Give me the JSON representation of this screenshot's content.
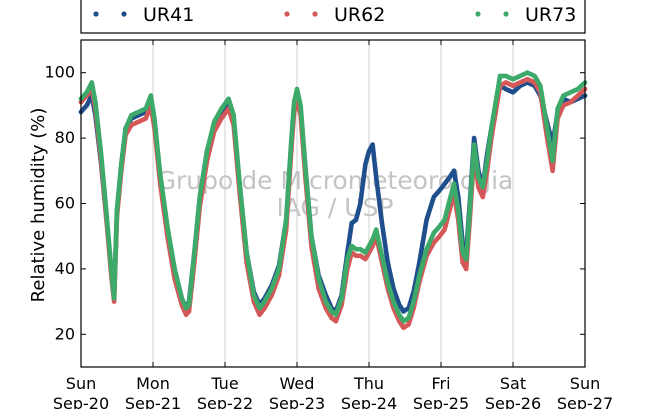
{
  "chart_data": {
    "type": "scatter",
    "title": "",
    "xlabel": "",
    "ylabel": "Relative humidity (%)",
    "ylim": [
      10,
      110
    ],
    "xlim": [
      0,
      7
    ],
    "y_ticks": [
      20,
      40,
      60,
      80,
      100
    ],
    "x_ticks": [
      {
        "x": 0,
        "day": "Sun",
        "date": "Sep-20"
      },
      {
        "x": 1,
        "day": "Mon",
        "date": "Sep-21"
      },
      {
        "x": 2,
        "day": "Tue",
        "date": "Sep-22"
      },
      {
        "x": 3,
        "day": "Wed",
        "date": "Sep-23"
      },
      {
        "x": 4,
        "day": "Thu",
        "date": "Sep-24"
      },
      {
        "x": 5,
        "day": "Fri",
        "date": "Sep-25"
      },
      {
        "x": 6,
        "day": "Sat",
        "date": "Sep-26"
      },
      {
        "x": 7,
        "day": "Sun",
        "date": "Sep-27"
      }
    ],
    "grid": "vertical",
    "legend_position": "top",
    "watermark": [
      "Grupo de Micrometeorologia",
      "IAG / USP"
    ],
    "series": [
      {
        "name": "UR41",
        "color": "#1f4e8c",
        "points": [
          [
            0.0,
            88
          ],
          [
            0.08,
            90
          ],
          [
            0.15,
            93
          ],
          [
            0.2,
            87
          ],
          [
            0.28,
            72
          ],
          [
            0.35,
            56
          ],
          [
            0.42,
            40
          ],
          [
            0.46,
            32
          ],
          [
            0.5,
            58
          ],
          [
            0.56,
            72
          ],
          [
            0.62,
            83
          ],
          [
            0.7,
            86
          ],
          [
            0.8,
            87
          ],
          [
            0.9,
            88
          ],
          [
            0.97,
            91
          ],
          [
            1.02,
            84
          ],
          [
            1.1,
            68
          ],
          [
            1.2,
            52
          ],
          [
            1.3,
            40
          ],
          [
            1.4,
            31
          ],
          [
            1.46,
            28
          ],
          [
            1.5,
            30
          ],
          [
            1.57,
            44
          ],
          [
            1.65,
            62
          ],
          [
            1.75,
            76
          ],
          [
            1.85,
            84
          ],
          [
            1.95,
            88
          ],
          [
            2.05,
            91
          ],
          [
            2.12,
            85
          ],
          [
            2.2,
            66
          ],
          [
            2.3,
            45
          ],
          [
            2.4,
            33
          ],
          [
            2.48,
            29
          ],
          [
            2.55,
            31
          ],
          [
            2.65,
            35
          ],
          [
            2.75,
            41
          ],
          [
            2.85,
            55
          ],
          [
            2.92,
            78
          ],
          [
            2.96,
            90
          ],
          [
            3.0,
            94
          ],
          [
            3.05,
            89
          ],
          [
            3.12,
            70
          ],
          [
            3.2,
            50
          ],
          [
            3.3,
            38
          ],
          [
            3.4,
            32
          ],
          [
            3.48,
            28
          ],
          [
            3.54,
            27
          ],
          [
            3.62,
            32
          ],
          [
            3.7,
            45
          ],
          [
            3.76,
            54
          ],
          [
            3.82,
            55
          ],
          [
            3.88,
            60
          ],
          [
            3.95,
            72
          ],
          [
            4.0,
            76
          ],
          [
            4.05,
            78
          ],
          [
            4.1,
            68
          ],
          [
            4.18,
            54
          ],
          [
            4.26,
            42
          ],
          [
            4.34,
            34
          ],
          [
            4.42,
            29
          ],
          [
            4.48,
            27
          ],
          [
            4.55,
            28
          ],
          [
            4.62,
            33
          ],
          [
            4.7,
            42
          ],
          [
            4.8,
            55
          ],
          [
            4.9,
            62
          ],
          [
            4.98,
            64
          ],
          [
            5.05,
            66
          ],
          [
            5.12,
            68
          ],
          [
            5.18,
            70
          ],
          [
            5.24,
            62
          ],
          [
            5.3,
            48
          ],
          [
            5.35,
            45
          ],
          [
            5.4,
            60
          ],
          [
            5.46,
            80
          ],
          [
            5.52,
            70
          ],
          [
            5.58,
            65
          ],
          [
            5.64,
            75
          ],
          [
            5.7,
            83
          ],
          [
            5.76,
            90
          ],
          [
            5.82,
            96
          ],
          [
            5.9,
            95
          ],
          [
            6.0,
            94
          ],
          [
            6.1,
            96
          ],
          [
            6.2,
            97
          ],
          [
            6.3,
            96
          ],
          [
            6.38,
            93
          ],
          [
            6.46,
            86
          ],
          [
            6.55,
            78
          ],
          [
            6.62,
            88
          ],
          [
            6.7,
            92
          ],
          [
            6.8,
            91
          ],
          [
            6.9,
            92
          ],
          [
            7.0,
            93
          ]
        ]
      },
      {
        "name": "UR62",
        "color": "#d45858",
        "points": [
          [
            0.0,
            91
          ],
          [
            0.08,
            93
          ],
          [
            0.15,
            95
          ],
          [
            0.2,
            89
          ],
          [
            0.28,
            73
          ],
          [
            0.35,
            56
          ],
          [
            0.42,
            38
          ],
          [
            0.46,
            30
          ],
          [
            0.5,
            56
          ],
          [
            0.56,
            70
          ],
          [
            0.62,
            81
          ],
          [
            0.7,
            84
          ],
          [
            0.8,
            85
          ],
          [
            0.9,
            86
          ],
          [
            0.97,
            90
          ],
          [
            1.02,
            83
          ],
          [
            1.1,
            66
          ],
          [
            1.2,
            50
          ],
          [
            1.3,
            37
          ],
          [
            1.4,
            29
          ],
          [
            1.46,
            26
          ],
          [
            1.5,
            27
          ],
          [
            1.57,
            41
          ],
          [
            1.65,
            59
          ],
          [
            1.75,
            73
          ],
          [
            1.85,
            82
          ],
          [
            1.95,
            86
          ],
          [
            2.05,
            89
          ],
          [
            2.12,
            84
          ],
          [
            2.2,
            64
          ],
          [
            2.3,
            42
          ],
          [
            2.4,
            30
          ],
          [
            2.48,
            26
          ],
          [
            2.55,
            28
          ],
          [
            2.65,
            32
          ],
          [
            2.75,
            38
          ],
          [
            2.85,
            52
          ],
          [
            2.92,
            76
          ],
          [
            2.96,
            88
          ],
          [
            3.0,
            92
          ],
          [
            3.05,
            87
          ],
          [
            3.12,
            67
          ],
          [
            3.2,
            47
          ],
          [
            3.3,
            34
          ],
          [
            3.4,
            28
          ],
          [
            3.48,
            25
          ],
          [
            3.54,
            24
          ],
          [
            3.62,
            29
          ],
          [
            3.7,
            40
          ],
          [
            3.76,
            45
          ],
          [
            3.82,
            44
          ],
          [
            3.88,
            44
          ],
          [
            3.95,
            43
          ],
          [
            4.0,
            45
          ],
          [
            4.05,
            47
          ],
          [
            4.1,
            50
          ],
          [
            4.18,
            42
          ],
          [
            4.26,
            34
          ],
          [
            4.34,
            28
          ],
          [
            4.42,
            24
          ],
          [
            4.48,
            22
          ],
          [
            4.55,
            23
          ],
          [
            4.62,
            28
          ],
          [
            4.7,
            36
          ],
          [
            4.8,
            44
          ],
          [
            4.9,
            48
          ],
          [
            4.98,
            50
          ],
          [
            5.05,
            52
          ],
          [
            5.12,
            58
          ],
          [
            5.18,
            63
          ],
          [
            5.24,
            55
          ],
          [
            5.3,
            42
          ],
          [
            5.35,
            40
          ],
          [
            5.4,
            55
          ],
          [
            5.46,
            75
          ],
          [
            5.52,
            65
          ],
          [
            5.58,
            62
          ],
          [
            5.64,
            70
          ],
          [
            5.7,
            80
          ],
          [
            5.76,
            88
          ],
          [
            5.82,
            96
          ],
          [
            5.9,
            97
          ],
          [
            6.0,
            96
          ],
          [
            6.1,
            97
          ],
          [
            6.2,
            98
          ],
          [
            6.3,
            97
          ],
          [
            6.38,
            94
          ],
          [
            6.46,
            82
          ],
          [
            6.55,
            70
          ],
          [
            6.62,
            86
          ],
          [
            6.7,
            90
          ],
          [
            6.8,
            91
          ],
          [
            6.9,
            93
          ],
          [
            7.0,
            95
          ]
        ]
      },
      {
        "name": "UR73",
        "color": "#3daa6a",
        "points": [
          [
            0.0,
            92
          ],
          [
            0.08,
            94
          ],
          [
            0.15,
            97
          ],
          [
            0.2,
            91
          ],
          [
            0.28,
            75
          ],
          [
            0.35,
            58
          ],
          [
            0.42,
            40
          ],
          [
            0.46,
            31
          ],
          [
            0.5,
            58
          ],
          [
            0.56,
            72
          ],
          [
            0.62,
            83
          ],
          [
            0.7,
            87
          ],
          [
            0.8,
            88
          ],
          [
            0.9,
            89
          ],
          [
            0.97,
            93
          ],
          [
            1.02,
            86
          ],
          [
            1.1,
            69
          ],
          [
            1.2,
            53
          ],
          [
            1.3,
            40
          ],
          [
            1.4,
            31
          ],
          [
            1.46,
            28
          ],
          [
            1.5,
            29
          ],
          [
            1.57,
            44
          ],
          [
            1.65,
            62
          ],
          [
            1.75,
            76
          ],
          [
            1.85,
            85
          ],
          [
            1.95,
            89
          ],
          [
            2.05,
            92
          ],
          [
            2.12,
            87
          ],
          [
            2.2,
            67
          ],
          [
            2.3,
            45
          ],
          [
            2.4,
            32
          ],
          [
            2.48,
            28
          ],
          [
            2.55,
            30
          ],
          [
            2.65,
            34
          ],
          [
            2.75,
            40
          ],
          [
            2.85,
            55
          ],
          [
            2.92,
            79
          ],
          [
            2.96,
            91
          ],
          [
            3.0,
            95
          ],
          [
            3.05,
            90
          ],
          [
            3.12,
            70
          ],
          [
            3.2,
            50
          ],
          [
            3.3,
            37
          ],
          [
            3.4,
            30
          ],
          [
            3.48,
            27
          ],
          [
            3.54,
            26
          ],
          [
            3.62,
            31
          ],
          [
            3.7,
            43
          ],
          [
            3.76,
            47
          ],
          [
            3.82,
            46
          ],
          [
            3.88,
            46
          ],
          [
            3.95,
            45
          ],
          [
            4.0,
            47
          ],
          [
            4.05,
            49
          ],
          [
            4.1,
            52
          ],
          [
            4.18,
            44
          ],
          [
            4.26,
            36
          ],
          [
            4.34,
            30
          ],
          [
            4.42,
            26
          ],
          [
            4.48,
            24
          ],
          [
            4.55,
            25
          ],
          [
            4.62,
            30
          ],
          [
            4.7,
            38
          ],
          [
            4.8,
            46
          ],
          [
            4.9,
            51
          ],
          [
            4.98,
            53
          ],
          [
            5.05,
            55
          ],
          [
            5.12,
            61
          ],
          [
            5.18,
            66
          ],
          [
            5.24,
            58
          ],
          [
            5.3,
            45
          ],
          [
            5.35,
            43
          ],
          [
            5.4,
            58
          ],
          [
            5.46,
            78
          ],
          [
            5.52,
            68
          ],
          [
            5.58,
            65
          ],
          [
            5.64,
            73
          ],
          [
            5.7,
            83
          ],
          [
            5.76,
            91
          ],
          [
            5.82,
            99
          ],
          [
            5.9,
            99
          ],
          [
            6.0,
            98
          ],
          [
            6.1,
            99
          ],
          [
            6.2,
            100
          ],
          [
            6.3,
            99
          ],
          [
            6.38,
            96
          ],
          [
            6.46,
            85
          ],
          [
            6.55,
            73
          ],
          [
            6.62,
            89
          ],
          [
            6.7,
            93
          ],
          [
            6.8,
            94
          ],
          [
            6.9,
            95
          ],
          [
            7.0,
            97
          ]
        ]
      }
    ]
  }
}
